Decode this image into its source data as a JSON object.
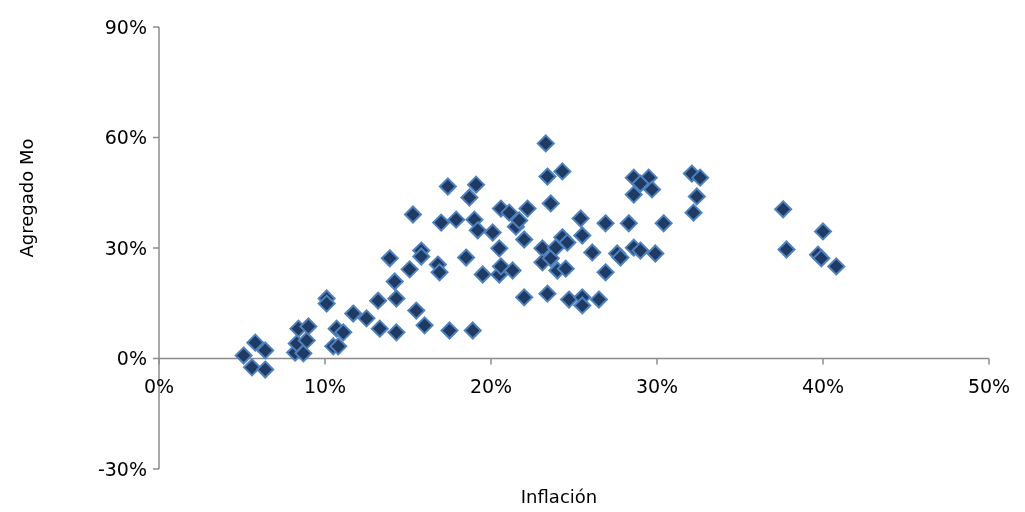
{
  "chart_data": {
    "type": "scatter",
    "xlabel": "Inflación",
    "ylabel": "Agregado Mo",
    "xlim": [
      0,
      50
    ],
    "ylim": [
      -30,
      90
    ],
    "xticks": [
      {
        "value": 0,
        "label": "0%"
      },
      {
        "value": 10,
        "label": "10%"
      },
      {
        "value": 20,
        "label": "20%"
      },
      {
        "value": 30,
        "label": "30%"
      },
      {
        "value": 40,
        "label": "40%"
      },
      {
        "value": 50,
        "label": "50%"
      }
    ],
    "yticks": [
      {
        "value": -30,
        "label": "-30%"
      },
      {
        "value": 0,
        "label": "0%"
      },
      {
        "value": 30,
        "label": "30%"
      },
      {
        "value": 60,
        "label": "60%"
      },
      {
        "value": 90,
        "label": "90%"
      }
    ],
    "grid": false,
    "marker": "diamond",
    "series": [
      {
        "color": "#1f3b63",
        "x": [
          5.1,
          5.6,
          5.8,
          6.4,
          6.4,
          8.2,
          8.3,
          8.4,
          8.7,
          8.9,
          9.0,
          10.1,
          10.1,
          10.5,
          10.7,
          10.8,
          11.1,
          11.7,
          12.5,
          13.3,
          13.2,
          13.9,
          14.2,
          14.3,
          14.3,
          15.1,
          15.3,
          15.5,
          15.8,
          15.8,
          16.0,
          16.8,
          16.9,
          17.0,
          17.4,
          17.5,
          17.9,
          18.5,
          18.7,
          18.9,
          19.0,
          19.1,
          19.2,
          19.5,
          20.1,
          20.5,
          20.5,
          20.6,
          20.6,
          21.1,
          21.3,
          21.5,
          21.7,
          22.0,
          22.0,
          22.2,
          23.3,
          23.4,
          24.3,
          23.6,
          23.4,
          24.7,
          25.5,
          25.5,
          26.5,
          25.4,
          25.5,
          26.9,
          28.3,
          30.4,
          28.6,
          29.5,
          29.0,
          28.6,
          29.7,
          32.1,
          32.6,
          32.4,
          32.2,
          26.1,
          26.9,
          27.6,
          27.8,
          28.6,
          29.0,
          29.9,
          23.1,
          23.1,
          23.6,
          23.9,
          24.3,
          24.6,
          24.0,
          24.5,
          37.6,
          37.8,
          40.0,
          39.7,
          39.9,
          40.8
        ],
        "values": [
          0.8,
          -2.4,
          4.3,
          2.2,
          -3.0,
          1.6,
          4.1,
          8.1,
          1.4,
          4.9,
          8.7,
          16.3,
          14.9,
          3.3,
          8.1,
          3.3,
          7.1,
          12.2,
          10.9,
          8.1,
          15.7,
          27.2,
          20.9,
          16.3,
          7.1,
          24.2,
          39.1,
          13.0,
          29.3,
          27.7,
          9.0,
          25.5,
          23.4,
          36.9,
          46.7,
          7.6,
          37.7,
          27.4,
          43.7,
          7.6,
          37.7,
          47.2,
          34.8,
          22.8,
          34.2,
          29.9,
          22.8,
          25.0,
          40.7,
          39.6,
          23.9,
          35.8,
          37.5,
          32.3,
          16.6,
          40.7,
          58.4,
          49.4,
          50.8,
          42.1,
          17.6,
          16.0,
          16.6,
          14.4,
          16.0,
          38.0,
          33.4,
          36.7,
          36.7,
          36.7,
          49.1,
          49.1,
          47.5,
          44.5,
          45.9,
          50.2,
          49.1,
          44.0,
          39.6,
          28.8,
          23.4,
          28.5,
          27.4,
          30.1,
          29.3,
          28.5,
          29.9,
          26.1,
          27.2,
          30.1,
          32.9,
          31.5,
          23.9,
          24.4,
          40.5,
          29.6,
          34.5,
          28.2,
          27.2,
          25.0
        ]
      }
    ]
  }
}
